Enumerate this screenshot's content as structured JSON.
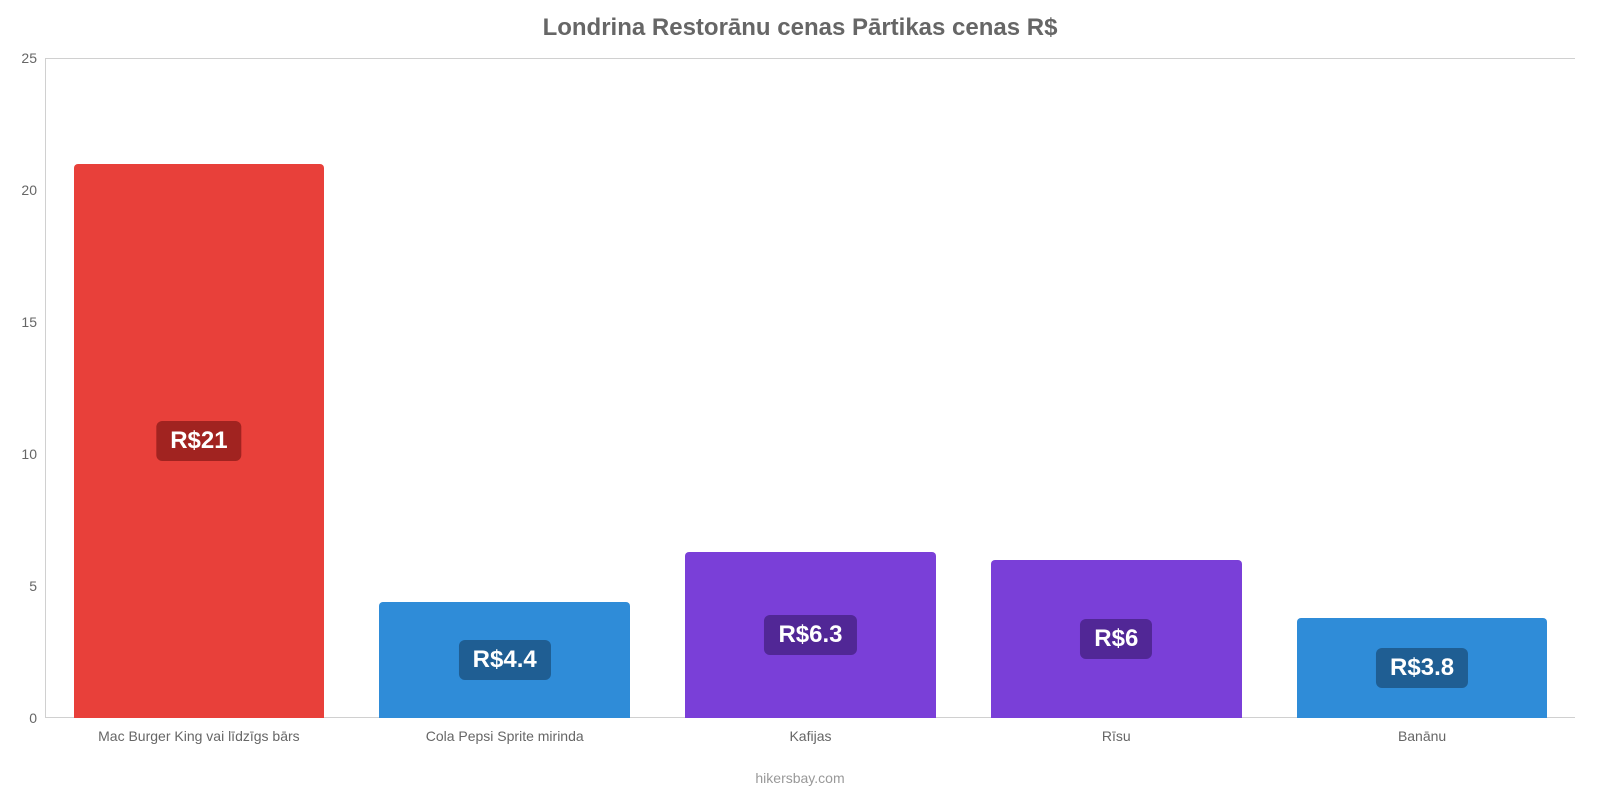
{
  "chart": {
    "type": "bar",
    "title": "Londrina Restorānu cenas Pārtikas cenas R$",
    "title_color": "#666666",
    "title_fontsize": 24,
    "background_color": "#ffffff",
    "grid_color": "#d0d0d0",
    "axis_label_color": "#666666",
    "axis_label_fontsize": 14,
    "ylim": [
      0,
      25
    ],
    "ytick_step": 5,
    "yticks": [
      0,
      5,
      10,
      15,
      20,
      25
    ],
    "bar_width": 0.82,
    "bar_border_radius": 4,
    "value_label_fontsize": 24,
    "value_label_text_color": "#ffffff",
    "credit": "hikersbay.com",
    "credit_color": "#999999",
    "categories": [
      "Mac Burger King vai līdzīgs bārs",
      "Cola Pepsi Sprite mirinda",
      "Kafijas",
      "Rīsu",
      "Banānu"
    ],
    "values": [
      21,
      4.4,
      6.3,
      6,
      3.8
    ],
    "value_labels": [
      "R$21",
      "R$4.4",
      "R$6.3",
      "R$6",
      "R$3.8"
    ],
    "bar_colors": [
      "#e8403a",
      "#2f8cd8",
      "#7a3fd8",
      "#7a3fd8",
      "#2f8cd8"
    ],
    "value_label_bg_colors": [
      "#a12320",
      "#1f5e93",
      "#512796",
      "#512796",
      "#1f5e93"
    ]
  }
}
